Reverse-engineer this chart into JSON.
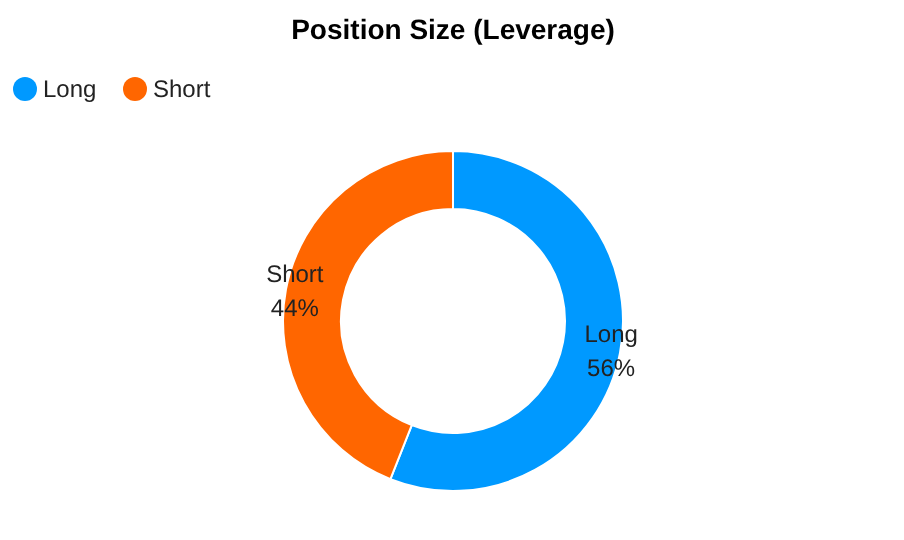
{
  "chart_data": {
    "type": "donut",
    "title": "Position Size (Leverage)",
    "categories": [
      "Long",
      "Short"
    ],
    "values": [
      56,
      44
    ],
    "colors": [
      "#0099ff",
      "#ff6600"
    ],
    "value_labels": [
      "56%",
      "44%"
    ],
    "legend": "top left"
  }
}
